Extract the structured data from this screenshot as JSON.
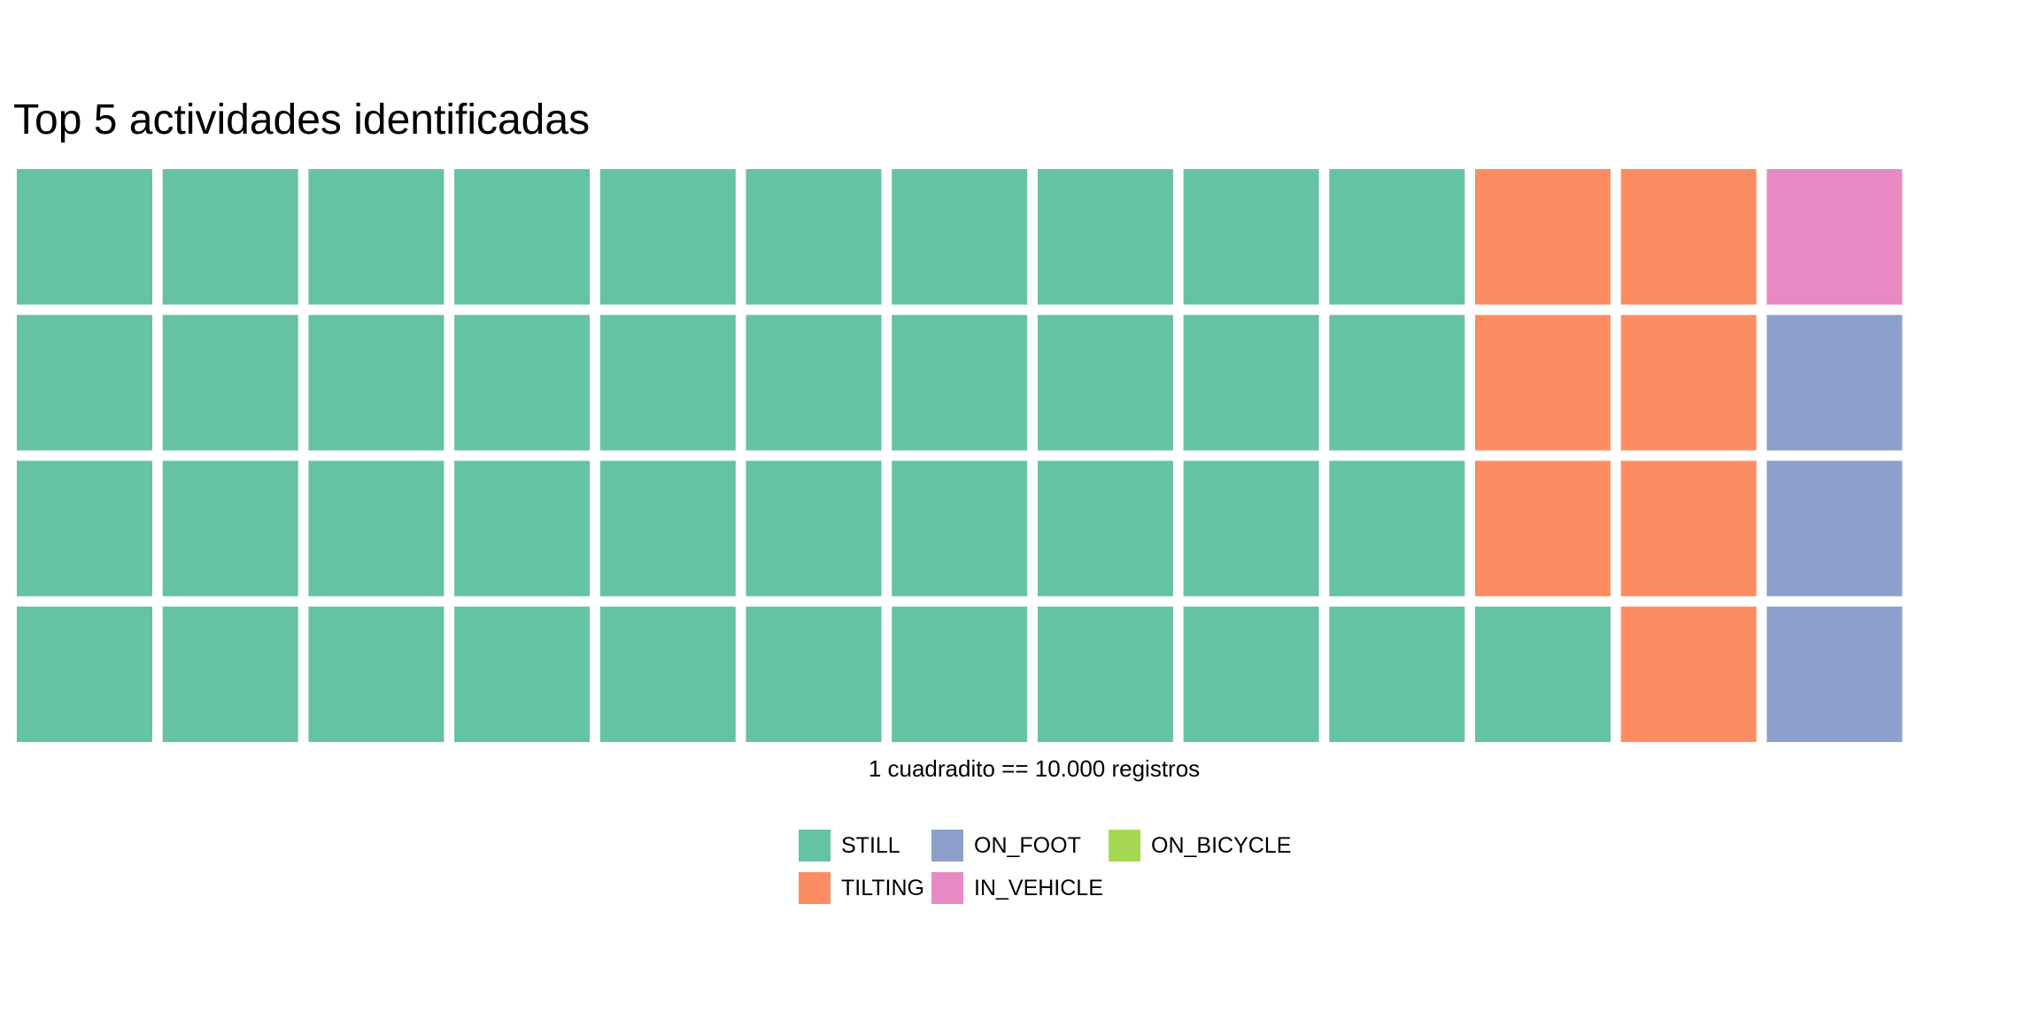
{
  "chart_data": {
    "type": "waffle",
    "title": "Top 5 actividades identificadas",
    "caption": "1 cuadradito == 10.000 registros",
    "rows": 4,
    "columns": 13,
    "fill_order": "column-major, bottom-to-top",
    "categories": [
      "STILL",
      "TILTING",
      "ON_FOOT",
      "IN_VEHICLE",
      "ON_BICYCLE"
    ],
    "values": [
      41,
      7,
      3,
      1,
      0
    ],
    "colors": {
      "STILL": "#66c2a5",
      "TILTING": "#fc8d62",
      "ON_FOOT": "#8da0cb",
      "IN_VEHICLE": "#e78ac3",
      "ON_BICYCLE": "#a6d854"
    },
    "legend": {
      "position": "bottom",
      "items": [
        "STILL",
        "ON_FOOT",
        "ON_BICYCLE",
        "TILTING",
        "IN_VEHICLE"
      ]
    }
  }
}
